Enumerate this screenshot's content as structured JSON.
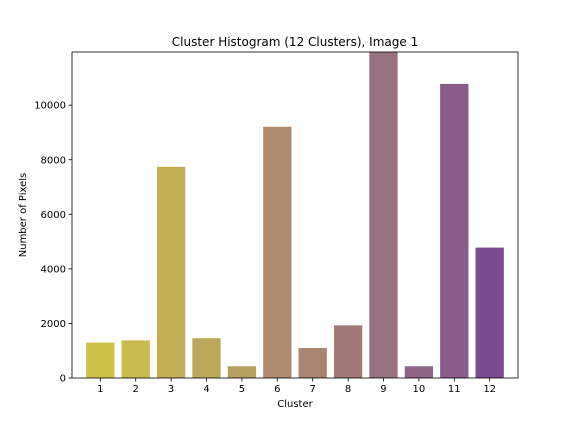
{
  "chart_data": {
    "type": "bar",
    "title": "Cluster Histogram (12 Clusters), Image 1",
    "xlabel": "Cluster",
    "ylabel": "Number of Pixels",
    "categories": [
      "1",
      "2",
      "3",
      "4",
      "5",
      "6",
      "7",
      "8",
      "9",
      "10",
      "11",
      "12"
    ],
    "values": [
      1300,
      1380,
      7740,
      1460,
      430,
      9210,
      1100,
      1930,
      11950,
      430,
      10780,
      4780
    ],
    "colors": [
      "#cdc04b",
      "#c9bb4e",
      "#c3ae54",
      "#bca75a",
      "#b6a05f",
      "#ae8c6d",
      "#a88473",
      "#a07978",
      "#977280",
      "#8f6587",
      "#895c8a",
      "#7b4b8f"
    ],
    "ylim": [
      0,
      11950
    ],
    "yticks": [
      0,
      2000,
      4000,
      6000,
      8000,
      10000
    ],
    "ytick_labels": [
      "0",
      "2000",
      "4000",
      "6000",
      "8000",
      "10000"
    ],
    "grid": false,
    "legend": "none"
  }
}
